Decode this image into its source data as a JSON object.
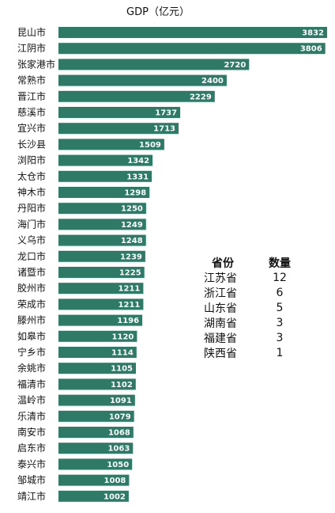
{
  "chart_data": {
    "type": "bar",
    "orientation": "horizontal",
    "title": "GDP（亿元）",
    "color": "#2e7a66",
    "xlim": [
      0,
      3832
    ],
    "categories": [
      "昆山市",
      "江阴市",
      "张家港市",
      "常熟市",
      "晋江市",
      "慈溪市",
      "宜兴市",
      "长沙县",
      "浏阳市",
      "太仓市",
      "神木市",
      "丹阳市",
      "海门市",
      "义乌市",
      "龙口市",
      "诸暨市",
      "胶州市",
      "荣成市",
      "滕州市",
      "如皋市",
      "宁乡市",
      "余姚市",
      "福清市",
      "温岭市",
      "乐清市",
      "南安市",
      "启东市",
      "泰兴市",
      "邹城市",
      "靖江市"
    ],
    "values": [
      3832,
      3806,
      2720,
      2400,
      2229,
      1737,
      1713,
      1509,
      1342,
      1331,
      1298,
      1250,
      1249,
      1248,
      1239,
      1225,
      1211,
      1211,
      1196,
      1120,
      1114,
      1105,
      1102,
      1091,
      1079,
      1068,
      1063,
      1050,
      1008,
      1002
    ]
  },
  "summary_table": {
    "headers": {
      "province": "省份",
      "count": "数量"
    },
    "rows": [
      {
        "province": "江苏省",
        "count": "12"
      },
      {
        "province": "浙江省",
        "count": "6"
      },
      {
        "province": "山东省",
        "count": "5"
      },
      {
        "province": "湖南省",
        "count": "3"
      },
      {
        "province": "福建省",
        "count": "3"
      },
      {
        "province": "陕西省",
        "count": "1"
      }
    ]
  }
}
